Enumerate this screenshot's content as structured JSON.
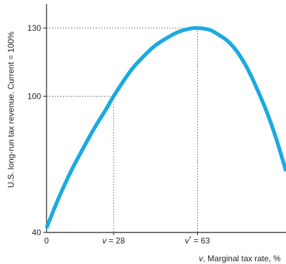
{
  "chart_data": {
    "type": "line",
    "title": "",
    "xlabel_prefix": "v",
    "xlabel_rest": ", Marginal tax rate, %",
    "ylabel": "U.S. long-run tax revenue. Current = 100%",
    "xlim": [
      0,
      100
    ],
    "ylim": [
      40,
      140
    ],
    "y_ticks": [
      {
        "value": 130,
        "label": "130"
      },
      {
        "value": 100,
        "label": "100"
      },
      {
        "value": 40,
        "label": "40"
      }
    ],
    "x_ticks": [
      {
        "value": 0,
        "var": "",
        "rest": "0"
      },
      {
        "value": 28,
        "var": "v",
        "rest": " = 28"
      },
      {
        "value": 63,
        "var": "v*",
        "rest": " = 63"
      }
    ],
    "reference_points": [
      {
        "x": 28,
        "y": 100
      },
      {
        "x": 63,
        "y": 130
      }
    ],
    "series": [
      {
        "color": "#1aaae2",
        "x": [
          0,
          5,
          10,
          15,
          20,
          25,
          28,
          35,
          40,
          45,
          50,
          55,
          60,
          63,
          68,
          72,
          76,
          80,
          84,
          88,
          92,
          96,
          100
        ],
        "y": [
          42,
          55,
          66.5,
          76.5,
          86,
          94.5,
          100,
          111,
          117,
          122,
          125.5,
          128.3,
          129.8,
          130,
          129.3,
          127,
          124,
          119,
          112,
          103,
          93,
          81,
          67
        ]
      }
    ]
  }
}
